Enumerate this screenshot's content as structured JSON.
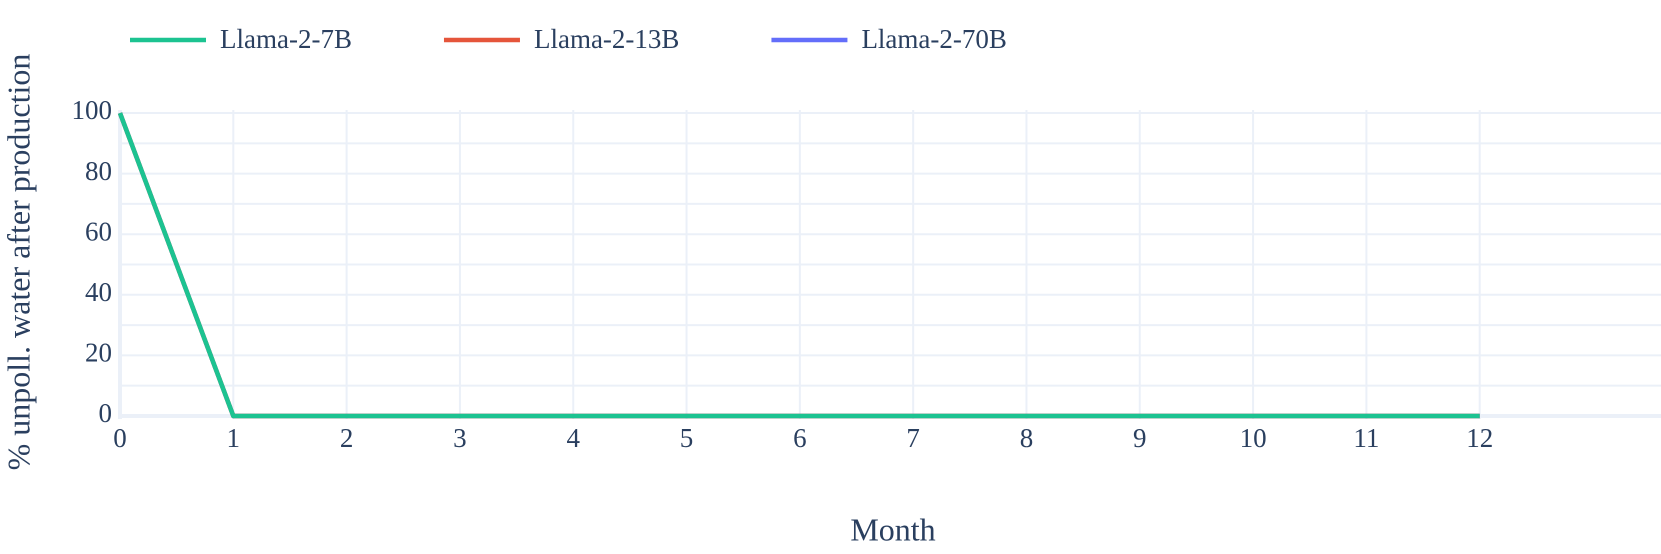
{
  "chart_data": {
    "type": "line",
    "x": [
      0,
      1,
      2,
      3,
      4,
      5,
      6,
      7,
      8,
      9,
      10,
      11,
      12
    ],
    "series": [
      {
        "name": "Llama-2-7B",
        "color": "#1cc391",
        "values": [
          100,
          0,
          0,
          0,
          0,
          0,
          0,
          0,
          0,
          0,
          0,
          0,
          0
        ]
      },
      {
        "name": "Llama-2-13B",
        "color": "#e5553b",
        "values": [
          100,
          0,
          0,
          0,
          0,
          0,
          0,
          0,
          0,
          0,
          0,
          0,
          0
        ]
      },
      {
        "name": "Llama-2-70B",
        "color": "#636efa",
        "values": [
          100,
          0,
          0,
          0,
          0,
          0,
          0,
          0,
          0,
          0,
          0,
          0,
          0
        ]
      }
    ],
    "xlabel": "Month",
    "ylabel": "% unpoll. water after production",
    "xlim": [
      0,
      13.6
    ],
    "xticks": [
      0,
      1,
      2,
      3,
      4,
      5,
      6,
      7,
      8,
      9,
      10,
      11,
      12
    ],
    "ylim": [
      -1,
      101
    ],
    "yticks": [
      0,
      20,
      40,
      60,
      80,
      100
    ],
    "grid": true,
    "legend": "top"
  }
}
